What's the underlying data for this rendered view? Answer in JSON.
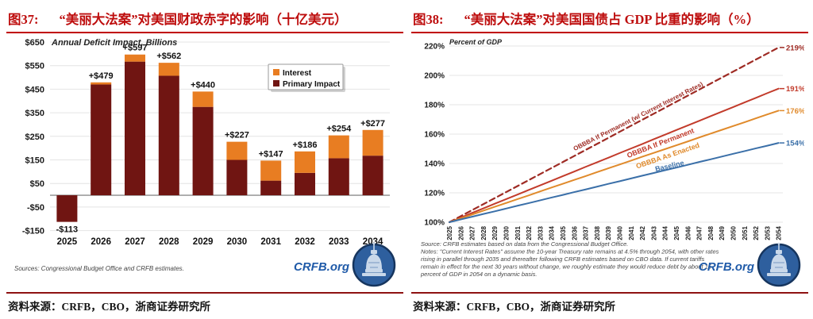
{
  "page": {
    "accent_red": "#C00000",
    "rule_dark_red": "#8E1212"
  },
  "figures": [
    {
      "label": "图37:",
      "title": "“美丽大法案”对美国财政赤字的影响（十亿美元）",
      "caption": "资料来源：CRFB，CBO，浙商证券研究所"
    },
    {
      "label": "图38:",
      "title": "“美丽大法案”对美国国债占 GDP 比重的影响（%）",
      "caption": "资料来源：CRFB，CBO，浙商证券研究所"
    }
  ],
  "chart_data": [
    {
      "type": "bar",
      "stacked": true,
      "title": "Annual Deficit Impact, Billions",
      "categories": [
        "2025",
        "2026",
        "2027",
        "2028",
        "2029",
        "2030",
        "2031",
        "2032",
        "2033",
        "2034"
      ],
      "series": [
        {
          "name": "Interest",
          "color": "#E87D22",
          "values": [
            0,
            9,
            30,
            55,
            65,
            77,
            85,
            91,
            97,
            109
          ]
        },
        {
          "name": "Primary Impact",
          "color": "#701512",
          "values": [
            -113,
            470,
            567,
            507,
            375,
            150,
            62,
            95,
            157,
            168
          ]
        }
      ],
      "totals": [
        -113,
        479,
        597,
        562,
        440,
        227,
        147,
        186,
        254,
        277
      ],
      "total_labels": [
        "-$113",
        "+$479",
        "+$597",
        "+$562",
        "+$440",
        "+$227",
        "+$147",
        "+$186",
        "+$254",
        "+$277"
      ],
      "y_ticks": [
        {
          "label": "$650",
          "value": 650
        },
        {
          "label": "$550",
          "value": 550
        },
        {
          "label": "$450",
          "value": 450
        },
        {
          "label": "$350",
          "value": 350
        },
        {
          "label": "$250",
          "value": 250
        },
        {
          "label": "$150",
          "value": 150
        },
        {
          "label": "$50",
          "value": 50
        },
        {
          "label": "-$50",
          "value": -50
        },
        {
          "label": "-$150",
          "value": -150
        }
      ],
      "ylim": [
        -150,
        650
      ],
      "grid": true,
      "legend_position": "upper-right",
      "source_note": "Sources: Congressional Budget Office and CRFB estimates.",
      "logo_text": "CRFB.org"
    },
    {
      "type": "line",
      "title": "Percent of GDP",
      "x": [
        "2025",
        "2026",
        "2027",
        "2028",
        "2029",
        "2030",
        "2031",
        "2032",
        "2033",
        "2034",
        "2035",
        "2036",
        "2037",
        "2038",
        "2039",
        "2040",
        "2041",
        "2042",
        "2043",
        "2044",
        "2045",
        "2046",
        "2047",
        "2048",
        "2049",
        "2050",
        "2051",
        "2052",
        "2053",
        "2054"
      ],
      "ylim": [
        100,
        220
      ],
      "y_ticks": [
        {
          "label": "220%",
          "value": 220
        },
        {
          "label": "200%",
          "value": 200
        },
        {
          "label": "180%",
          "value": 180
        },
        {
          "label": "160%",
          "value": 160
        },
        {
          "label": "140%",
          "value": 140
        },
        {
          "label": "120%",
          "value": 120
        },
        {
          "label": "100%",
          "value": 100
        }
      ],
      "grid": true,
      "series": [
        {
          "name": "OBBBA If Permanent (w/ Current Interest Rates)",
          "color": "#9E2B24",
          "dashed": true,
          "end_label": "219%",
          "values": [
            100,
            104.1,
            108.2,
            112.3,
            116.4,
            120.5,
            124.6,
            128.7,
            132.8,
            136.9,
            141,
            145.1,
            149.2,
            153.3,
            157.4,
            161.6,
            165.7,
            169.8,
            173.9,
            178,
            182.1,
            186.2,
            190.3,
            194.4,
            198.5,
            202.6,
            206.7,
            210.8,
            214.9,
            219
          ]
        },
        {
          "name": "OBBBA If Permanent",
          "color": "#C23B2B",
          "dashed": false,
          "end_label": "191%",
          "values": [
            100,
            103.1,
            106.3,
            109.4,
            112.6,
            115.7,
            118.8,
            122,
            125.1,
            128.2,
            131.4,
            134.5,
            137.7,
            140.8,
            143.9,
            147.1,
            150.2,
            153.3,
            156.5,
            159.6,
            162.8,
            165.9,
            169,
            172.2,
            175.3,
            178.4,
            181.6,
            184.7,
            187.9,
            191
          ]
        },
        {
          "name": "OBBBA As Enacted",
          "color": "#E08A2B",
          "dashed": false,
          "end_label": "176%",
          "values": [
            100,
            102.6,
            105.2,
            107.9,
            110.5,
            113.1,
            115.7,
            118.3,
            121,
            123.6,
            126.2,
            128.8,
            131.4,
            134.1,
            136.7,
            139.3,
            141.9,
            144.6,
            147.2,
            149.8,
            152.4,
            155,
            157.7,
            160.3,
            162.9,
            165.5,
            168.1,
            170.8,
            173.4,
            176
          ]
        },
        {
          "name": "Baseline",
          "color": "#3A6FA8",
          "dashed": false,
          "end_label": "154%",
          "values": [
            100,
            101.9,
            103.7,
            105.6,
            107.4,
            109.3,
            111.2,
            113,
            114.9,
            116.8,
            118.6,
            120.5,
            122.3,
            124.2,
            126.1,
            127.9,
            129.8,
            131.7,
            133.5,
            135.4,
            137.2,
            139.1,
            141,
            142.8,
            144.7,
            146.6,
            148.4,
            150.3,
            152.1,
            154
          ]
        }
      ],
      "source_note_lines": [
        "Source: CRFB estimates based on data from the Congressional Budget Office.",
        "Notes: \"Current Interest Rates\" assume the 10-year Treasury rate remains at 4.5% through 2054, with other rates",
        "rising in parallel through 2035 and thereafter following CRFB estimates based on CBO data. If current tariffs",
        "remain in effect for the next 30 years without change, we roughly estimate they would reduce debt by about 15",
        "percent of GDP in 2054 on a dynamic basis."
      ],
      "logo_text": "CRFB.org"
    }
  ]
}
